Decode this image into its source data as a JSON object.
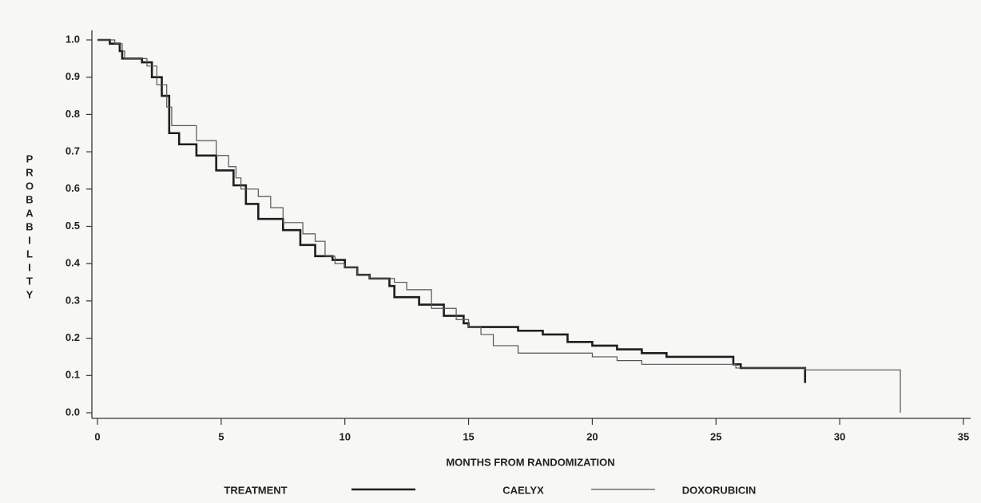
{
  "chart_data": {
    "type": "line",
    "step": true,
    "xlabel": "MONTHS FROM RANDOMIZATION",
    "ylabel": "PROBABILITY",
    "legend_title": "TREATMENT",
    "xlim": [
      0,
      35
    ],
    "xticks": [
      0,
      5,
      10,
      15,
      20,
      25,
      30,
      35
    ],
    "ylim": [
      0,
      1
    ],
    "yticks": [
      {
        "value": 0,
        "label": "0.0"
      },
      0.1,
      0.2,
      0.3,
      0.4,
      0.5,
      0.6,
      0.7,
      0.8,
      0.9,
      {
        "value": 1,
        "label": "1.0"
      }
    ],
    "series": [
      {
        "name": "CAELYX",
        "color": "#1e1e1e",
        "width": 2.6,
        "x": [
          0,
          0.5,
          0.9,
          1.0,
          1.8,
          2.2,
          2.6,
          2.9,
          3.3,
          4,
          4.8,
          5.5,
          6,
          6.5,
          7.5,
          8.2,
          8.8,
          9.5,
          10,
          10.5,
          11,
          11.8,
          12,
          13,
          14,
          14.8,
          15,
          17,
          18,
          19,
          20,
          21,
          22,
          23,
          25.5,
          25.7,
          26,
          28.5,
          28.6
        ],
        "values": [
          1.0,
          0.99,
          0.97,
          0.95,
          0.94,
          0.9,
          0.85,
          0.75,
          0.72,
          0.69,
          0.65,
          0.61,
          0.56,
          0.52,
          0.49,
          0.45,
          0.42,
          0.41,
          0.39,
          0.37,
          0.36,
          0.34,
          0.31,
          0.29,
          0.26,
          0.24,
          0.23,
          0.22,
          0.21,
          0.19,
          0.18,
          0.17,
          0.16,
          0.15,
          0.15,
          0.13,
          0.12,
          0.12,
          0.08
        ]
      },
      {
        "name": "DOXORUBICIN",
        "color": "#555555",
        "width": 1.2,
        "x": [
          0,
          0.7,
          1.0,
          1.1,
          2,
          2.4,
          2.8,
          3,
          4,
          4.8,
          5.3,
          5.6,
          5.8,
          6.5,
          7,
          7.5,
          8.3,
          8.8,
          9.2,
          9.6,
          10,
          10.5,
          11,
          12,
          12.5,
          13.5,
          14.5,
          15,
          15.5,
          16,
          17,
          20,
          21,
          22,
          25.8,
          28.6,
          32.45
        ],
        "values": [
          1.0,
          0.99,
          0.97,
          0.95,
          0.93,
          0.88,
          0.82,
          0.77,
          0.73,
          0.69,
          0.66,
          0.63,
          0.6,
          0.58,
          0.55,
          0.51,
          0.48,
          0.46,
          0.42,
          0.4,
          0.39,
          0.37,
          0.36,
          0.35,
          0.33,
          0.28,
          0.25,
          0.23,
          0.21,
          0.18,
          0.16,
          0.15,
          0.14,
          0.13,
          0.12,
          0.115,
          0.0
        ]
      }
    ]
  }
}
